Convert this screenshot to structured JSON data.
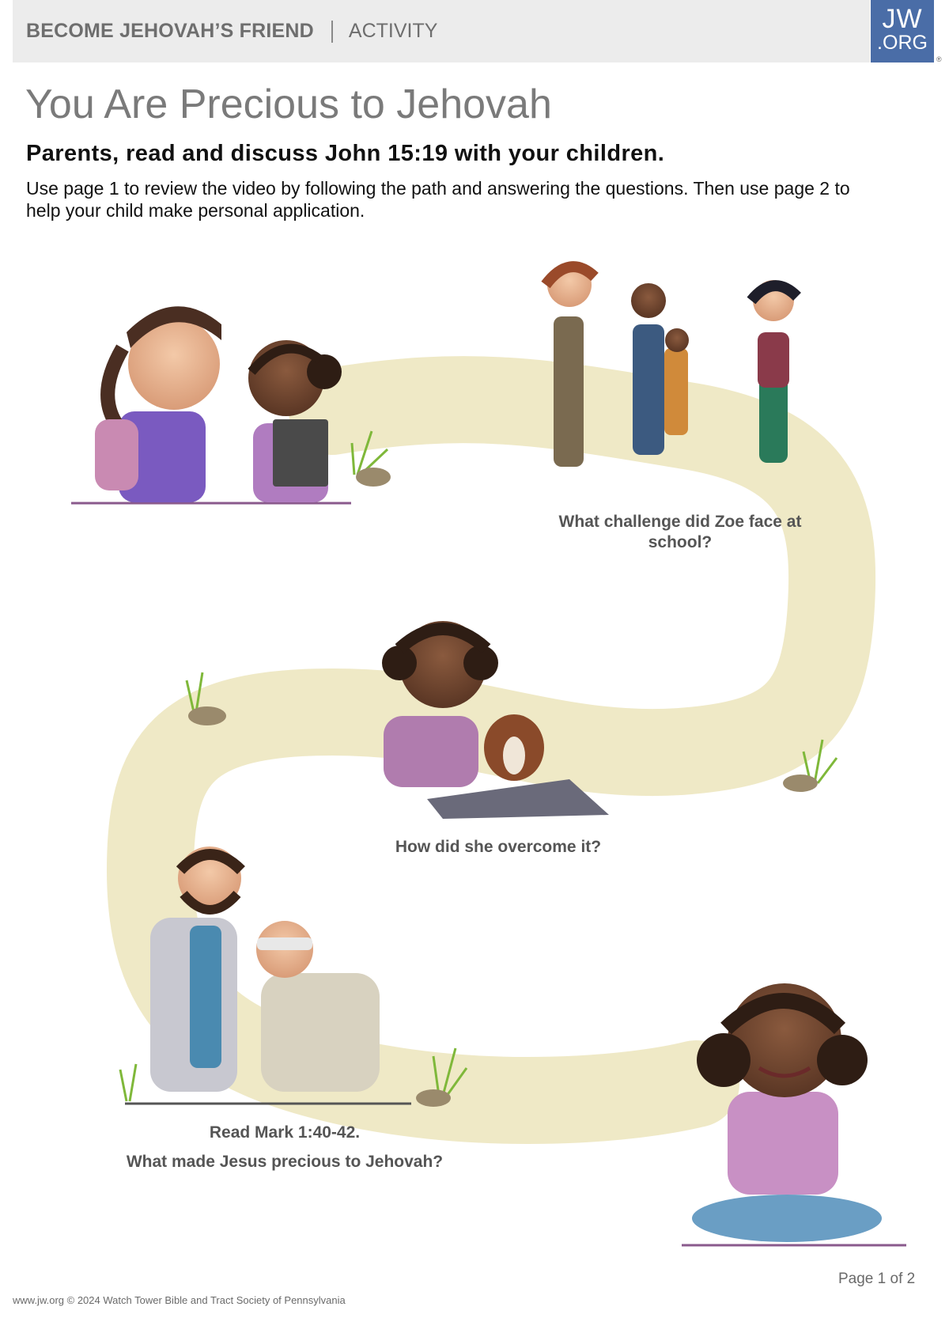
{
  "header": {
    "series_title": "BECOME JEHOVAH’S FRIEND",
    "section_label": "ACTIVITY",
    "logo_line1": "JW",
    "logo_line2": ".ORG"
  },
  "title": "You Are Precious to Jehovah",
  "subtitle": "Parents, read and discuss John 15:19 with your children.",
  "intro": "Use page 1 to review the video by following the path and answering the questions. Then use page 2 to help your child make personal application.",
  "questions": {
    "q1": "What challenge did Zoe face at school?",
    "q2": "How did she overcome it?",
    "q3_ref": "Read Mark 1:40-42.",
    "q3": "What made Jesus precious to Jehovah?"
  },
  "page_number": "Page 1 of 2",
  "footer": "www.jw.org © 2024 Watch Tower Bible and Tract Society of Pennsylvania",
  "colors": {
    "path": "#efe9c6",
    "accent_line": "#8a5a8c",
    "logo_bg": "#4a6da7",
    "header_bg": "#ececec"
  }
}
